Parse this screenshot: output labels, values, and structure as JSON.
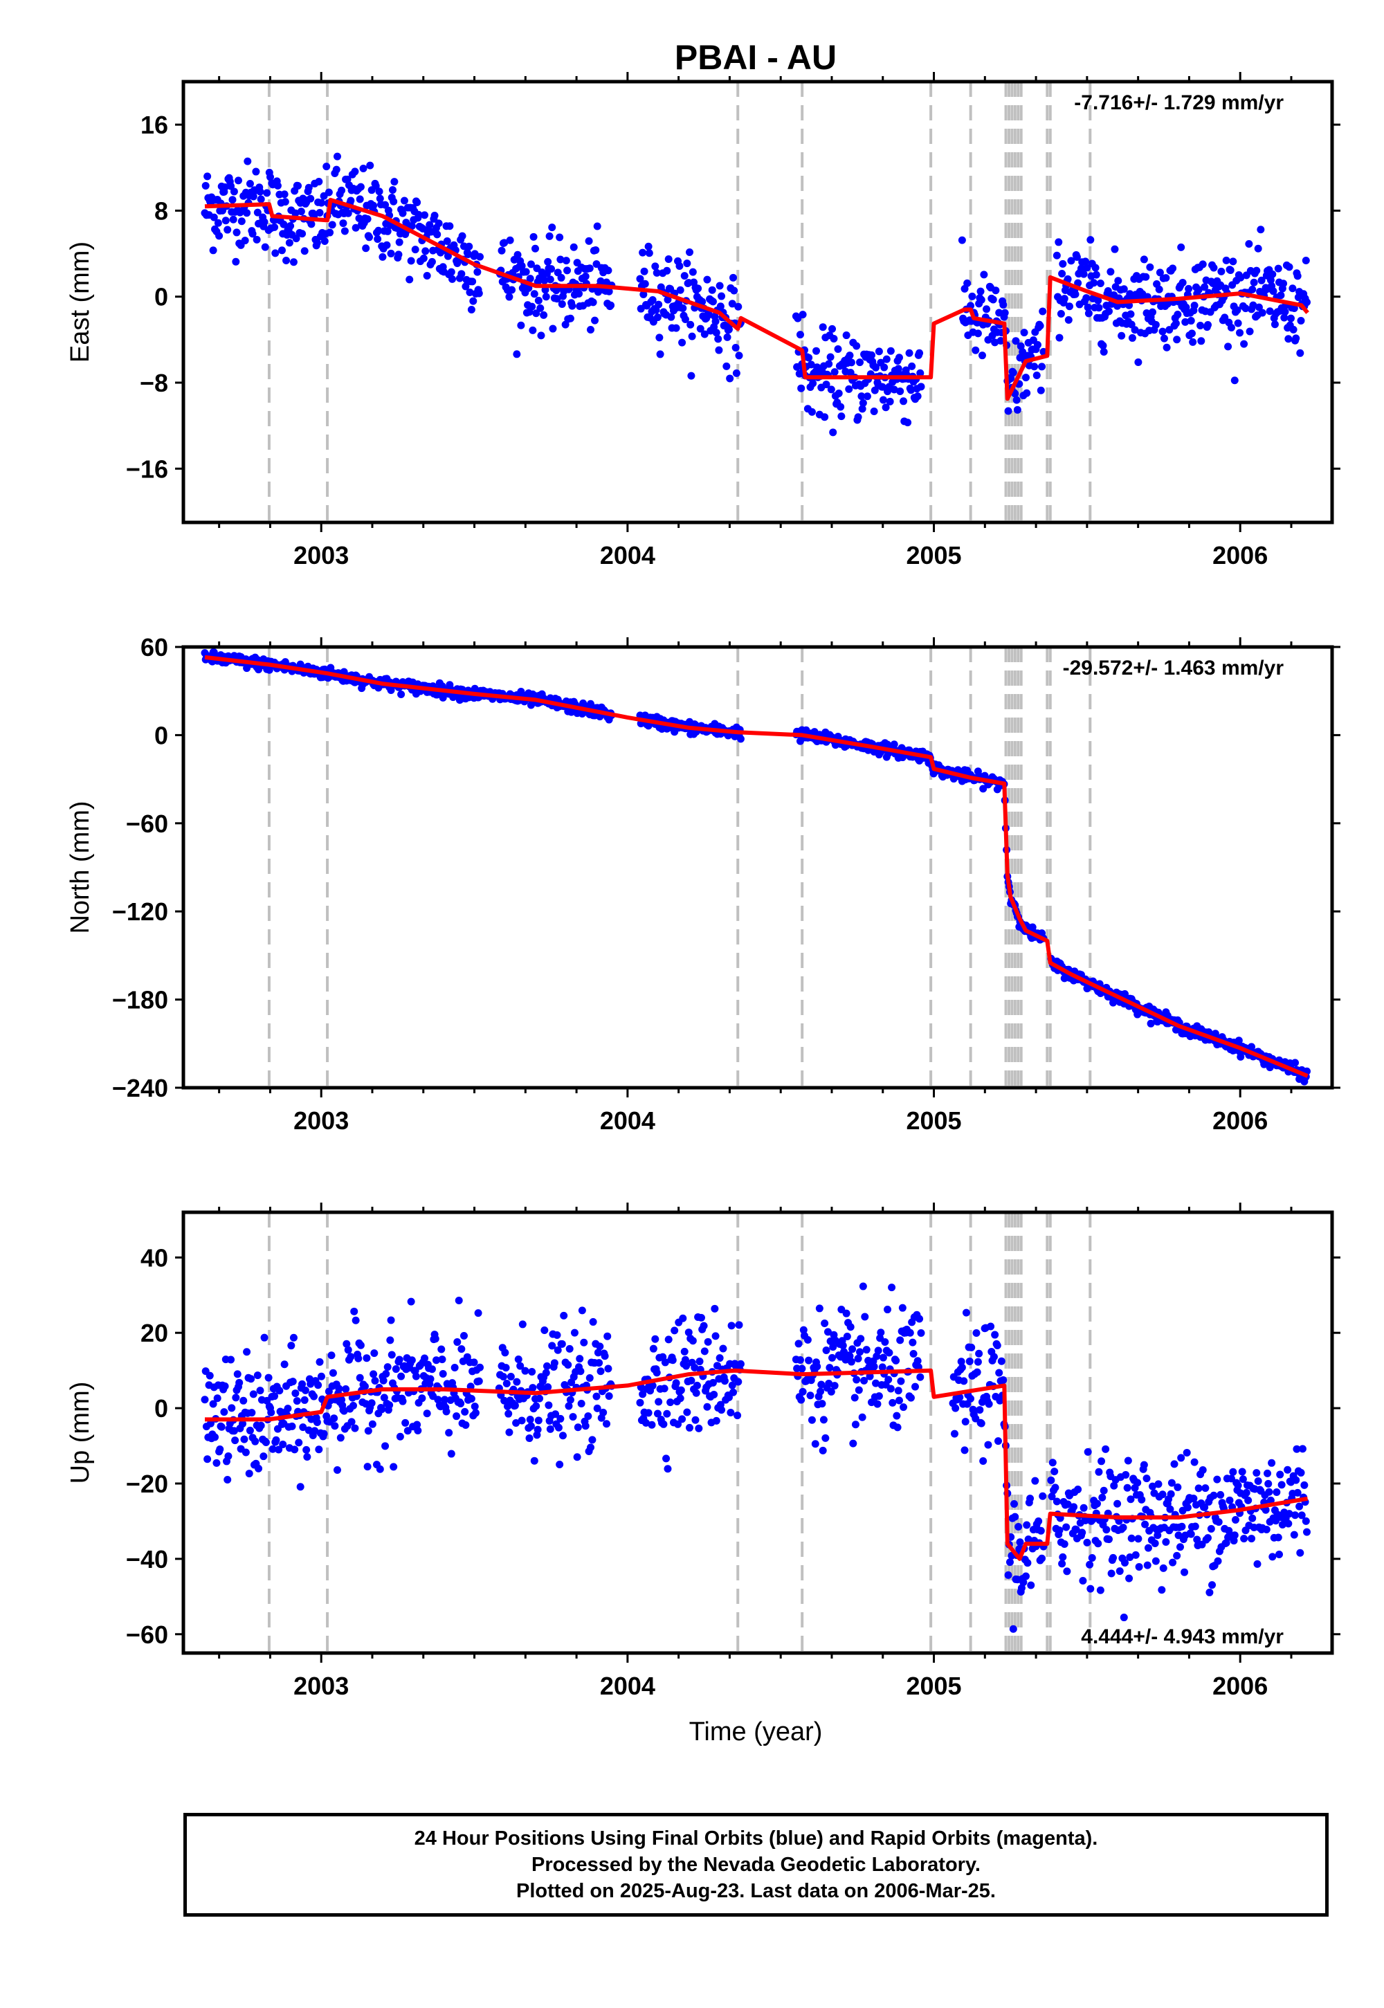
{
  "title": "PBAI - AU",
  "x_label": "Time (year)",
  "x_ticks": [
    "2003",
    "2004",
    "2005",
    "2006"
  ],
  "colors": {
    "final_orbits": "#0000ff",
    "model": "#ff0000",
    "event_lines": "#c0c0c0"
  },
  "panels": [
    {
      "id": "east",
      "ylabel": "East (mm)",
      "rate_text": "-7.716+/- 1.729 mm/yr",
      "rate_position": "top-right",
      "yticks": [
        "16",
        "8",
        "0",
        "−8",
        "−16"
      ]
    },
    {
      "id": "north",
      "ylabel": "North (mm)",
      "rate_text": "-29.572+/- 1.463 mm/yr",
      "rate_position": "top-right",
      "yticks": [
        "60",
        "0",
        "−60",
        "−120",
        "−180",
        "−240"
      ]
    },
    {
      "id": "up",
      "ylabel": "Up (mm)",
      "rate_text": "4.444+/- 4.943 mm/yr",
      "rate_position": "bottom-right",
      "yticks": [
        "40",
        "20",
        "0",
        "−20",
        "−40",
        "−60"
      ]
    }
  ],
  "footer": {
    "line1": "24 Hour Positions Using Final Orbits (blue) and Rapid Orbits (magenta).",
    "line2": "Processed by the Nevada Geodetic Laboratory.",
    "line3": "Plotted on 2025-Aug-23. Last data on 2006-Mar-25."
  },
  "chart_data": [
    {
      "type": "scatter",
      "title": "PBAI - AU",
      "ylabel": "East (mm)",
      "xlabel": "",
      "xlim": [
        2002.55,
        2006.3
      ],
      "ylim": [
        -21,
        20
      ],
      "yticks": [
        16,
        8,
        0,
        -8,
        -16
      ],
      "xticks": [
        2003,
        2004,
        2005,
        2006
      ],
      "rate": "-7.716+/- 1.729 mm/yr",
      "event_lines": [
        2002.83,
        2003.02,
        2004.36,
        2004.57,
        2004.99,
        2005.12,
        2005.235,
        2005.245,
        2005.255,
        2005.265,
        2005.275,
        2005.285,
        2005.37,
        2005.38,
        2005.51
      ],
      "data_gaps": [
        [
          2003.52,
          2003.58
        ],
        [
          2003.95,
          2004.04
        ],
        [
          2004.37,
          2004.55
        ],
        [
          2004.96,
          2005.09
        ],
        [
          2005.36,
          2005.4
        ]
      ],
      "noise_sigma": 2.0,
      "series": [
        {
          "name": "Final Orbits (blue)",
          "role": "points",
          "x": [
            2002.62,
            2002.83,
            2002.84,
            2003.02,
            2003.03,
            2003.2,
            2003.5,
            2003.7,
            2003.9,
            2004.1,
            2004.3,
            2004.36,
            2004.37,
            2004.57,
            2004.58,
            2004.99,
            2005.0,
            2005.1,
            2005.12,
            2005.13,
            2005.23,
            2005.24,
            2005.3,
            2005.37,
            2005.38,
            2005.5,
            2005.6,
            2005.8,
            2006.0,
            2006.2,
            2006.22
          ],
          "y": [
            8.4,
            8.6,
            7.5,
            7.1,
            9.0,
            7.5,
            3.0,
            1.0,
            1.0,
            0.5,
            -1.5,
            -3.0,
            -2.0,
            -5.0,
            -7.5,
            -7.5,
            -2.5,
            -1.2,
            -1.2,
            -2.0,
            -2.5,
            -9.5,
            -6.0,
            -5.5,
            1.8,
            0.5,
            -0.5,
            -0.2,
            0.3,
            -0.8,
            -1.5
          ]
        },
        {
          "name": "Model",
          "role": "line",
          "x": [
            2002.62,
            2002.83,
            2002.84,
            2003.02,
            2003.03,
            2003.2,
            2003.5,
            2003.7,
            2003.9,
            2004.1,
            2004.3,
            2004.36,
            2004.37,
            2004.57,
            2004.58,
            2004.99,
            2005.0,
            2005.1,
            2005.12,
            2005.13,
            2005.23,
            2005.24,
            2005.3,
            2005.37,
            2005.38,
            2005.5,
            2005.6,
            2005.8,
            2006.0,
            2006.2,
            2006.22
          ],
          "y": [
            8.4,
            8.6,
            7.5,
            7.1,
            9.0,
            7.5,
            3.0,
            1.0,
            1.0,
            0.5,
            -1.5,
            -3.0,
            -2.0,
            -5.0,
            -7.5,
            -7.5,
            -2.5,
            -1.2,
            -1.2,
            -2.0,
            -2.5,
            -9.5,
            -6.0,
            -5.5,
            1.8,
            0.5,
            -0.5,
            -0.2,
            0.3,
            -0.8,
            -1.5
          ]
        }
      ]
    },
    {
      "type": "scatter",
      "ylabel": "North (mm)",
      "xlabel": "",
      "xlim": [
        2002.55,
        2006.3
      ],
      "ylim": [
        -240,
        60
      ],
      "yticks": [
        60,
        0,
        -60,
        -120,
        -180,
        -240
      ],
      "xticks": [
        2003,
        2004,
        2005,
        2006
      ],
      "rate": "-29.572+/- 1.463 mm/yr",
      "event_lines": [
        2002.83,
        2003.02,
        2004.36,
        2004.57,
        2004.99,
        2005.12,
        2005.235,
        2005.245,
        2005.255,
        2005.265,
        2005.275,
        2005.285,
        2005.37,
        2005.38,
        2005.51
      ],
      "data_gaps": [
        [
          2003.95,
          2004.04
        ],
        [
          2004.37,
          2004.55
        ],
        [
          2005.36,
          2005.38
        ]
      ],
      "noise_sigma": 2.0,
      "series": [
        {
          "name": "Final Orbits (blue)",
          "role": "points",
          "x": [
            2002.62,
            2002.83,
            2003.02,
            2003.2,
            2003.5,
            2003.7,
            2004.0,
            2004.2,
            2004.36,
            2004.57,
            2004.8,
            2004.99,
            2005.0,
            2005.12,
            2005.23,
            2005.24,
            2005.25,
            2005.28,
            2005.3,
            2005.37,
            2005.38,
            2005.45,
            2005.6,
            2005.8,
            2006.0,
            2006.22
          ],
          "y": [
            53,
            48,
            42,
            35,
            28,
            24,
            12,
            5,
            2,
            0,
            -8,
            -15,
            -23,
            -29,
            -33,
            -95,
            -110,
            -125,
            -133,
            -140,
            -155,
            -163,
            -178,
            -198,
            -213,
            -232
          ]
        },
        {
          "name": "Model",
          "role": "line",
          "x": [
            2002.62,
            2002.83,
            2003.02,
            2003.2,
            2003.5,
            2003.7,
            2004.0,
            2004.2,
            2004.36,
            2004.57,
            2004.8,
            2004.99,
            2005.0,
            2005.12,
            2005.23,
            2005.24,
            2005.25,
            2005.28,
            2005.3,
            2005.37,
            2005.38,
            2005.45,
            2005.6,
            2005.8,
            2006.0,
            2006.22
          ],
          "y": [
            53,
            48,
            42,
            35,
            28,
            24,
            12,
            5,
            2,
            0,
            -8,
            -15,
            -23,
            -29,
            -33,
            -95,
            -110,
            -125,
            -133,
            -140,
            -155,
            -163,
            -178,
            -198,
            -213,
            -232
          ]
        }
      ]
    },
    {
      "type": "scatter",
      "ylabel": "Up (mm)",
      "xlabel": "Time (year)",
      "xlim": [
        2002.55,
        2006.3
      ],
      "ylim": [
        -65,
        52
      ],
      "yticks": [
        40,
        20,
        0,
        -20,
        -40,
        -60
      ],
      "xticks": [
        2003,
        2004,
        2005,
        2006
      ],
      "rate": "4.444+/- 4.943 mm/yr",
      "event_lines": [
        2002.83,
        2003.02,
        2004.36,
        2004.57,
        2004.99,
        2005.12,
        2005.235,
        2005.245,
        2005.255,
        2005.265,
        2005.275,
        2005.285,
        2005.37,
        2005.38,
        2005.51
      ],
      "data_gaps": [
        [
          2003.52,
          2003.58
        ],
        [
          2003.95,
          2004.04
        ],
        [
          2004.37,
          2004.55
        ],
        [
          2004.96,
          2005.06
        ],
        [
          2005.36,
          2005.38
        ]
      ],
      "noise_sigma": 8.0,
      "series": [
        {
          "name": "Final Orbits (blue)",
          "role": "points",
          "x": [
            2002.62,
            2002.83,
            2003.0,
            2003.02,
            2003.2,
            2003.4,
            2003.7,
            2004.0,
            2004.2,
            2004.35,
            2004.57,
            2004.99,
            2005.0,
            2005.23,
            2005.24,
            2005.28,
            2005.3,
            2005.37,
            2005.38,
            2005.6,
            2005.8,
            2006.0,
            2006.22
          ],
          "y": [
            -3,
            -3,
            -1,
            3,
            5,
            5,
            4,
            6,
            9,
            10,
            9,
            10,
            3,
            6,
            -36,
            -40,
            -36,
            -36,
            -28,
            -29,
            -29,
            -27,
            -24
          ]
        },
        {
          "name": "Model",
          "role": "line",
          "x": [
            2002.62,
            2002.83,
            2003.0,
            2003.02,
            2003.2,
            2003.4,
            2003.7,
            2004.0,
            2004.2,
            2004.35,
            2004.57,
            2004.99,
            2005.0,
            2005.23,
            2005.24,
            2005.28,
            2005.3,
            2005.37,
            2005.38,
            2005.6,
            2005.8,
            2006.0,
            2006.22
          ],
          "y": [
            -3,
            -3,
            -1,
            3,
            5,
            5,
            4,
            6,
            9,
            10,
            9,
            10,
            3,
            6,
            -36,
            -40,
            -36,
            -36,
            -28,
            -29,
            -29,
            -27,
            -24
          ]
        }
      ]
    }
  ]
}
